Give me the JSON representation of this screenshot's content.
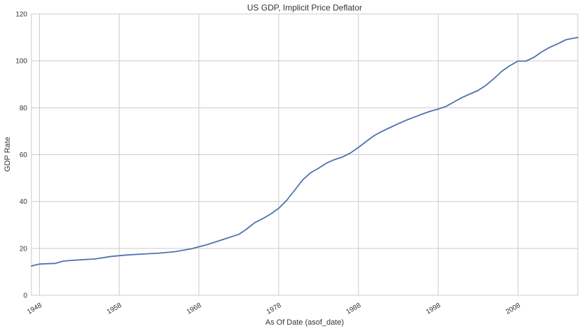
{
  "chart_data": {
    "type": "line",
    "title": "US GDP, Implicit Price Deflator",
    "xlabel": "As Of Date (asof_date)",
    "ylabel": "GDP Rate",
    "x_ticks": [
      "1948",
      "1958",
      "1968",
      "1978",
      "1988",
      "1998",
      "2008"
    ],
    "y_ticks": [
      0,
      20,
      40,
      60,
      80,
      100,
      120
    ],
    "xlim": [
      1947.0,
      2015.5
    ],
    "ylim": [
      0,
      120
    ],
    "grid": true,
    "legend": "none",
    "series": [
      {
        "color": "#4c72b0",
        "x": [
          1947.0,
          1948.0,
          1949.0,
          1950.0,
          1951.0,
          1952.0,
          1953.0,
          1955.0,
          1957.0,
          1959.0,
          1961.0,
          1963.0,
          1965.0,
          1967.0,
          1969.0,
          1971.0,
          1973.0,
          1974.0,
          1975.0,
          1976.0,
          1977.0,
          1978.0,
          1979.0,
          1980.0,
          1981.0,
          1982.0,
          1983.0,
          1984.0,
          1985.0,
          1986.0,
          1987.0,
          1988.0,
          1989.0,
          1990.0,
          1991.0,
          1992.0,
          1993.0,
          1994.0,
          1995.0,
          1996.0,
          1997.0,
          1998.0,
          1999.0,
          2000.0,
          2001.0,
          2002.0,
          2003.0,
          2004.0,
          2005.0,
          2006.0,
          2007.0,
          2008.0,
          2009.0,
          2010.0,
          2011.0,
          2012.0,
          2013.0,
          2014.0,
          2015.5
        ],
        "y": [
          12.5,
          13.3,
          13.5,
          13.6,
          14.6,
          14.9,
          15.1,
          15.5,
          16.6,
          17.2,
          17.6,
          18.0,
          18.6,
          19.8,
          21.6,
          23.8,
          26.0,
          28.3,
          31.0,
          32.7,
          34.7,
          37.1,
          40.5,
          44.8,
          49.2,
          52.3,
          54.2,
          56.4,
          57.9,
          59.0,
          60.7,
          63.1,
          65.7,
          68.2,
          70.0,
          71.6,
          73.2,
          74.7,
          76.0,
          77.3,
          78.5,
          79.4,
          80.6,
          82.5,
          84.4,
          85.9,
          87.4,
          89.6,
          92.5,
          95.6,
          98.0,
          99.9,
          99.9,
          101.5,
          103.9,
          105.8,
          107.3,
          109.0,
          110.0
        ]
      }
    ]
  }
}
